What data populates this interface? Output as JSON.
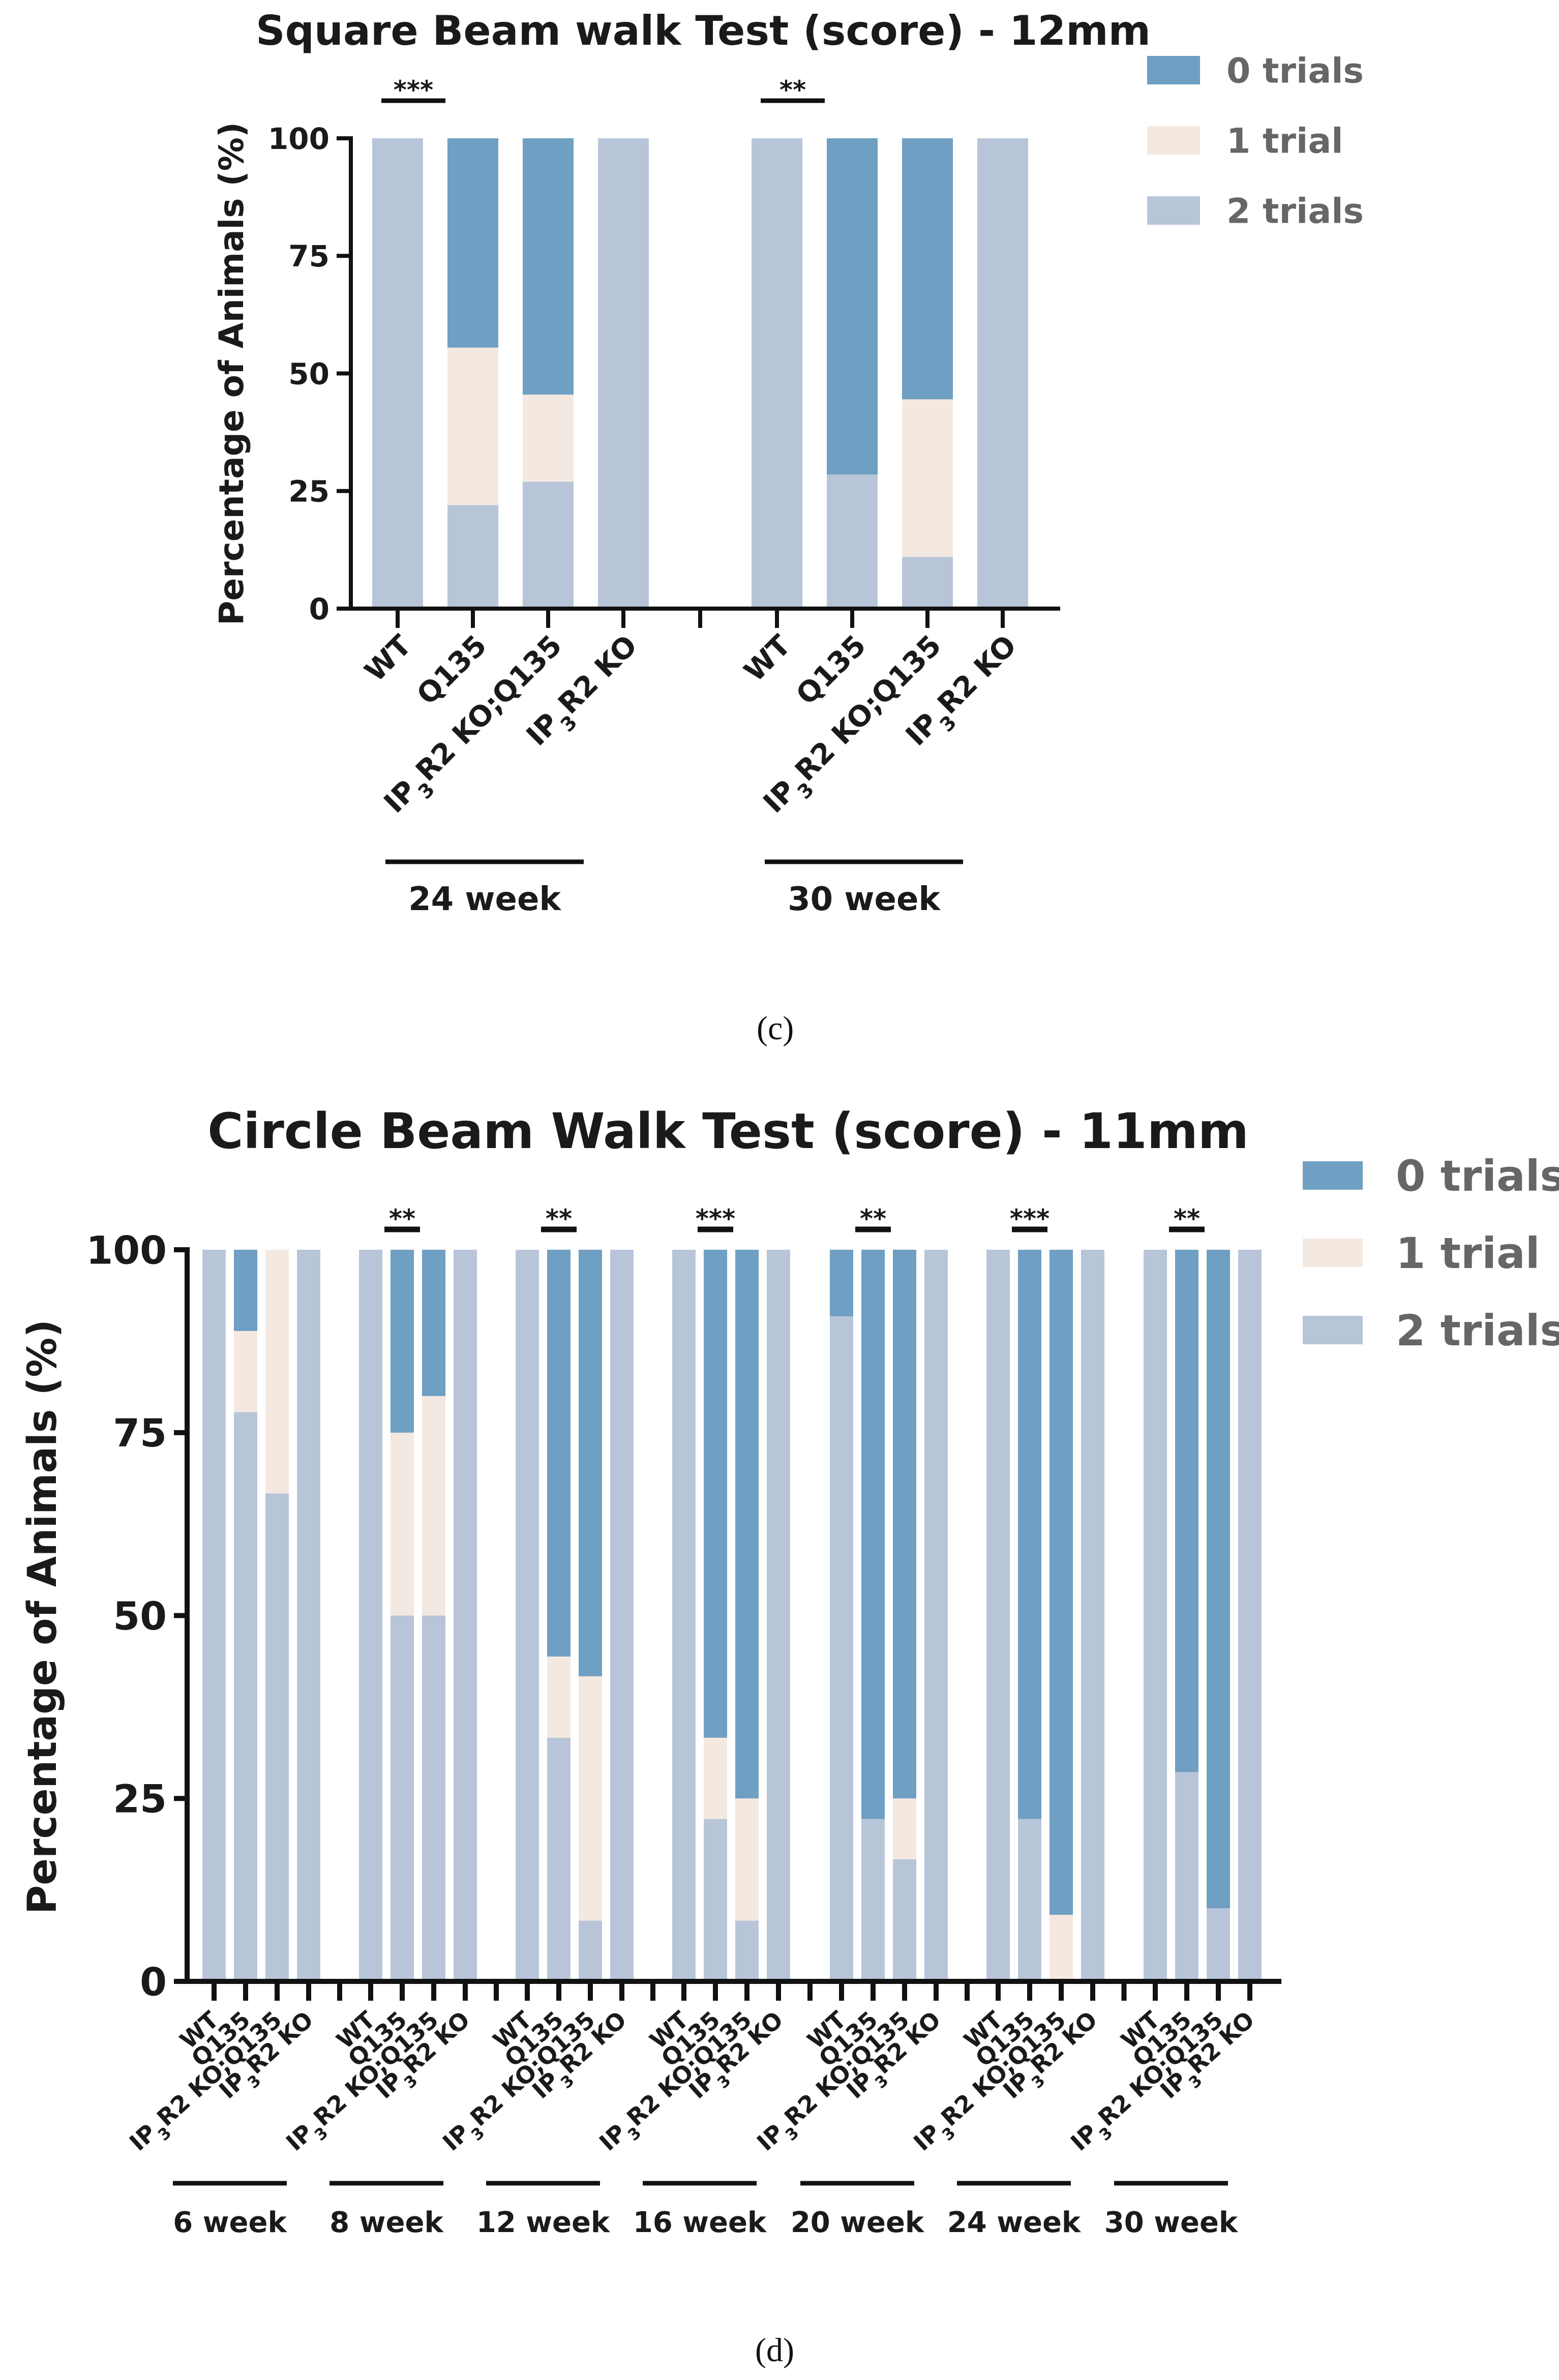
{
  "colors": {
    "zero_trials": "#6f9fc2",
    "one_trial": "#f4e9e1",
    "two_trials": "#b8c5d9",
    "axis": "#111111",
    "text": "#1a1a1a",
    "legend_text": "#666666"
  },
  "panels": {
    "c": {
      "label": "(c)"
    },
    "d": {
      "label": "(d)"
    }
  },
  "chart_data": [
    {
      "id": "c",
      "type": "bar",
      "stacked": true,
      "title": "Square Beam walk Test (score) - 12mm",
      "xlabel": "",
      "ylabel": "Percentage of Animals (%)",
      "ylim": [
        0,
        100
      ],
      "yticks": [
        0,
        25,
        50,
        75,
        100
      ],
      "legend": {
        "placement": "top-right",
        "entries": [
          "0 trials",
          "1 trial",
          "2 trials"
        ]
      },
      "groups": [
        {
          "label": "24 week",
          "significance": "***",
          "bars": [
            {
              "name": "WT",
              "two_trials": 100,
              "one_trial": 0,
              "zero_trials": 0
            },
            {
              "name": "Q135",
              "two_trials": 22,
              "one_trial": 33.5,
              "zero_trials": 44.5
            },
            {
              "name": "IP3R2 KO;Q135",
              "two_trials": 27,
              "one_trial": 18.5,
              "zero_trials": 54.5
            },
            {
              "name": "IP3R2 KO",
              "two_trials": 100,
              "one_trial": 0,
              "zero_trials": 0
            }
          ]
        },
        {
          "label": "30 week",
          "significance": "**",
          "bars": [
            {
              "name": "WT",
              "two_trials": 100,
              "one_trial": 0,
              "zero_trials": 0
            },
            {
              "name": "Q135",
              "two_trials": 28.5,
              "one_trial": 0,
              "zero_trials": 71.5
            },
            {
              "name": "IP3R2 KO;Q135",
              "two_trials": 11,
              "one_trial": 33.5,
              "zero_trials": 55.5
            },
            {
              "name": "IP3R2 KO",
              "two_trials": 100,
              "one_trial": 0,
              "zero_trials": 0
            }
          ]
        }
      ]
    },
    {
      "id": "d",
      "type": "bar",
      "stacked": true,
      "title": "Circle Beam Walk Test (score) - 11mm",
      "xlabel": "",
      "ylabel": "Percentage of Animals (%)",
      "ylim": [
        0,
        100
      ],
      "yticks": [
        0,
        25,
        50,
        75,
        100
      ],
      "legend": {
        "placement": "top-right",
        "entries": [
          "0 trials",
          "1 trial",
          "2 trials"
        ]
      },
      "groups": [
        {
          "label": "6 week",
          "significance": "",
          "bars": [
            {
              "name": "WT",
              "two_trials": 100,
              "one_trial": 0,
              "zero_trials": 0
            },
            {
              "name": "Q135",
              "two_trials": 77.8,
              "one_trial": 11.1,
              "zero_trials": 11.1
            },
            {
              "name": "IP3R2 KO;Q135",
              "two_trials": 66.7,
              "one_trial": 33.3,
              "zero_trials": 0
            },
            {
              "name": "IP3R2 KO",
              "two_trials": 100,
              "one_trial": 0,
              "zero_trials": 0
            }
          ]
        },
        {
          "label": "8 week",
          "significance": "**",
          "bars": [
            {
              "name": "WT",
              "two_trials": 100,
              "one_trial": 0,
              "zero_trials": 0
            },
            {
              "name": "Q135",
              "two_trials": 50,
              "one_trial": 25,
              "zero_trials": 25
            },
            {
              "name": "IP3R2 KO;Q135",
              "two_trials": 50,
              "one_trial": 30,
              "zero_trials": 20
            },
            {
              "name": "IP3R2 KO",
              "two_trials": 100,
              "one_trial": 0,
              "zero_trials": 0
            }
          ]
        },
        {
          "label": "12 week",
          "significance": "**",
          "bars": [
            {
              "name": "WT",
              "two_trials": 100,
              "one_trial": 0,
              "zero_trials": 0
            },
            {
              "name": "Q135",
              "two_trials": 33.3,
              "one_trial": 11.1,
              "zero_trials": 55.6
            },
            {
              "name": "IP3R2 KO;Q135",
              "two_trials": 8.3,
              "one_trial": 33.4,
              "zero_trials": 58.3
            },
            {
              "name": "IP3R2 KO",
              "two_trials": 100,
              "one_trial": 0,
              "zero_trials": 0
            }
          ]
        },
        {
          "label": "16 week",
          "significance": "***",
          "bars": [
            {
              "name": "WT",
              "two_trials": 100,
              "one_trial": 0,
              "zero_trials": 0
            },
            {
              "name": "Q135",
              "two_trials": 22.2,
              "one_trial": 11.1,
              "zero_trials": 66.7
            },
            {
              "name": "IP3R2 KO;Q135",
              "two_trials": 8.3,
              "one_trial": 16.7,
              "zero_trials": 75
            },
            {
              "name": "IP3R2 KO",
              "two_trials": 100,
              "one_trial": 0,
              "zero_trials": 0
            }
          ]
        },
        {
          "label": "20 week",
          "significance": "**",
          "bars": [
            {
              "name": "WT",
              "two_trials": 90.9,
              "one_trial": 0,
              "zero_trials": 9.1
            },
            {
              "name": "Q135",
              "two_trials": 22.2,
              "one_trial": 0,
              "zero_trials": 77.8
            },
            {
              "name": "IP3R2 KO;Q135",
              "two_trials": 16.7,
              "one_trial": 8.3,
              "zero_trials": 75
            },
            {
              "name": "IP3R2 KO",
              "two_trials": 100,
              "one_trial": 0,
              "zero_trials": 0
            }
          ]
        },
        {
          "label": "24 week",
          "significance": "***",
          "bars": [
            {
              "name": "WT",
              "two_trials": 100,
              "one_trial": 0,
              "zero_trials": 0
            },
            {
              "name": "Q135",
              "two_trials": 22.2,
              "one_trial": 0,
              "zero_trials": 77.8
            },
            {
              "name": "IP3R2 KO;Q135",
              "two_trials": 0,
              "one_trial": 9.1,
              "zero_trials": 90.9
            },
            {
              "name": "IP3R2 KO",
              "two_trials": 100,
              "one_trial": 0,
              "zero_trials": 0
            }
          ]
        },
        {
          "label": "30 week",
          "significance": "**",
          "bars": [
            {
              "name": "WT",
              "two_trials": 100,
              "one_trial": 0,
              "zero_trials": 0
            },
            {
              "name": "Q135",
              "two_trials": 28.6,
              "one_trial": 0,
              "zero_trials": 71.4
            },
            {
              "name": "IP3R2 KO;Q135",
              "two_trials": 10,
              "one_trial": 0,
              "zero_trials": 90
            },
            {
              "name": "IP3R2 KO",
              "two_trials": 100,
              "one_trial": 0,
              "zero_trials": 0
            }
          ]
        }
      ]
    }
  ]
}
